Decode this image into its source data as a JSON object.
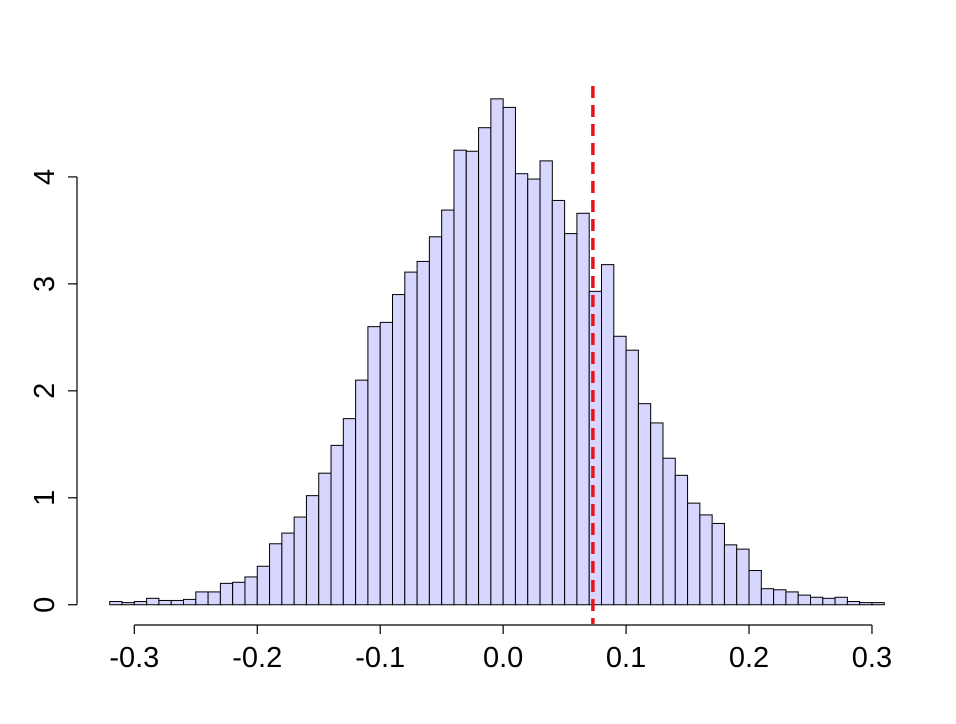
{
  "chart_data": {
    "type": "histogram",
    "bins": [
      -0.32,
      -0.31,
      -0.3,
      -0.29,
      -0.28,
      -0.27,
      -0.26,
      -0.25,
      -0.24,
      -0.23,
      -0.22,
      -0.21,
      -0.2,
      -0.19,
      -0.18,
      -0.17,
      -0.16,
      -0.15,
      -0.14,
      -0.13,
      -0.12,
      -0.11,
      -0.1,
      -0.09,
      -0.08,
      -0.07,
      -0.06,
      -0.05,
      -0.04,
      -0.03,
      -0.02,
      -0.01,
      0,
      0.01,
      0.02,
      0.03,
      0.04,
      0.05,
      0.06,
      0.07,
      0.08,
      0.09,
      0.1,
      0.11,
      0.12,
      0.13,
      0.14,
      0.15,
      0.16,
      0.17,
      0.18,
      0.19,
      0.2,
      0.21,
      0.22,
      0.23,
      0.24,
      0.25,
      0.26,
      0.27,
      0.28,
      0.29,
      0.3,
      0.31
    ],
    "values": [
      0.03,
      0.02,
      0.03,
      0.06,
      0.04,
      0.04,
      0.05,
      0.12,
      0.12,
      0.2,
      0.21,
      0.26,
      0.36,
      0.57,
      0.67,
      0.82,
      1.02,
      1.23,
      1.49,
      1.74,
      2.1,
      2.6,
      2.64,
      2.9,
      3.11,
      3.21,
      3.44,
      3.69,
      4.25,
      4.24,
      4.46,
      4.73,
      4.65,
      4.03,
      3.98,
      4.15,
      3.78,
      3.47,
      3.66,
      2.93,
      3.18,
      2.51,
      2.38,
      1.88,
      1.7,
      1.37,
      1.21,
      0.95,
      0.84,
      0.76,
      0.56,
      0.52,
      0.32,
      0.15,
      0.14,
      0.12,
      0.09,
      0.07,
      0.06,
      0.07,
      0.03,
      0.02,
      0.02
    ],
    "color": "#d6d6ff",
    "vline": {
      "value": 0.073,
      "color": "#e8121c"
    },
    "xlim": [
      -0.345,
      0.335
    ],
    "xticks": [
      -0.3,
      -0.2,
      -0.1,
      {
        "value": 0,
        "label": "0.0"
      },
      0.1,
      0.2,
      0.3
    ],
    "ylim": [
      -0.18,
      4.85
    ],
    "yticks": [
      0,
      1,
      2,
      3,
      4
    ]
  }
}
